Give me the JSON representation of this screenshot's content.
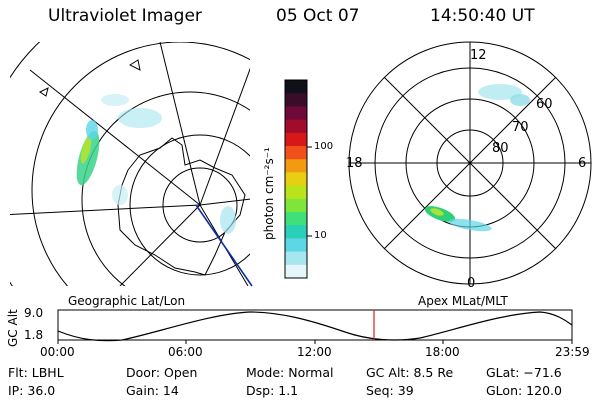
{
  "header": {
    "instrument": "Ultraviolet Imager",
    "date": "05 Oct 07",
    "time": "14:50:40 UT"
  },
  "maps": {
    "geographic_label": "Geographic Lat/Lon",
    "apex_label": "Apex MLat/MLT"
  },
  "colorbar": {
    "unit_label": "photon cm⁻²s⁻¹",
    "ticks": [
      "100",
      "10"
    ],
    "colors": [
      "#101018",
      "#3b0b2a",
      "#6d0a3a",
      "#a00c2a",
      "#d81818",
      "#f0501a",
      "#f29a12",
      "#e7cf14",
      "#b9e31a",
      "#7ee63a",
      "#3fdf7a",
      "#29d0b8",
      "#5dd6e6",
      "#a5e6ef",
      "#e4f6fa"
    ]
  },
  "polar": {
    "mlt_labels": [
      "12",
      "18",
      "6",
      "0"
    ],
    "mlat_labels": [
      "60",
      "70",
      "80"
    ]
  },
  "altitude_plot": {
    "ylabel": "GC Alt",
    "y_ticks": [
      "9.0",
      "1.8"
    ],
    "x_ticks": [
      "00:00",
      "06:00",
      "12:00",
      "18:00",
      "23:59"
    ],
    "current_time_marker": "14:50:40"
  },
  "info": {
    "filter": "Flt: LBHL",
    "door": "Door: Open",
    "mode": "Mode: Normal",
    "gc_alt": "GC Alt: 8.5 Re",
    "glat": "GLat: −71.6",
    "ip": "IP: 36.0",
    "gain": "Gain: 14",
    "dsp": "Dsp:    1.1",
    "seq": "Seq: 39",
    "glon": "GLon: 120.0"
  }
}
